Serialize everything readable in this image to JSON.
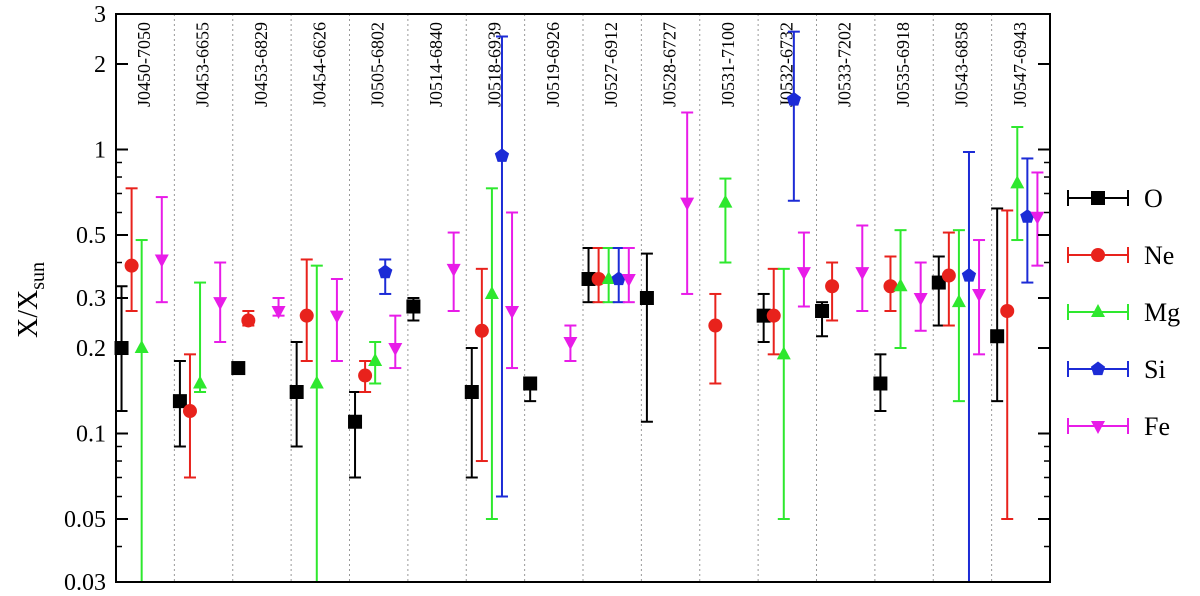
{
  "chart_data": {
    "type": "scatter",
    "title": "",
    "ylabel": "X/X",
    "ylabel_sub": "sun",
    "xlabel": "",
    "yscale": "log",
    "ylim": [
      0.03,
      3
    ],
    "yticks": [
      0.03,
      0.05,
      0.1,
      0.2,
      0.3,
      0.5,
      1,
      2,
      3
    ],
    "ytick_labels": [
      "0.03",
      "0.05",
      "0.1",
      "0.2",
      "0.3",
      "0.5",
      "1",
      "2",
      "3"
    ],
    "legend_position": "right",
    "categories": [
      "J0450-7050",
      "J0453-6655",
      "J0453-6829",
      "J0454-6626",
      "J0505-6802",
      "J0514-6840",
      "J0518-6939",
      "J0519-6926",
      "J0527-6912",
      "J0528-6727",
      "J0531-7100",
      "J0532-6732",
      "J0533-7202",
      "J0535-6918",
      "J0543-6858",
      "J0547-6943"
    ],
    "series": [
      {
        "name": "O",
        "color": "#000000",
        "marker": "square",
        "offset": 0,
        "points": [
          [
            0,
            0.2,
            0.12,
            0.33
          ],
          [
            1,
            0.13,
            0.09,
            0.18
          ],
          [
            2,
            0.17,
            null,
            null
          ],
          [
            3,
            0.14,
            0.09,
            0.21
          ],
          [
            4,
            0.11,
            0.07,
            0.14
          ],
          [
            5,
            0.28,
            0.25,
            0.3
          ],
          [
            6,
            0.14,
            0.07,
            0.2
          ],
          [
            7,
            0.15,
            0.13,
            null
          ],
          [
            8,
            0.35,
            0.29,
            0.45
          ],
          [
            9,
            0.3,
            0.11,
            0.43
          ],
          [
            11,
            0.26,
            0.21,
            0.31
          ],
          [
            12,
            0.27,
            0.22,
            0.29
          ],
          [
            13,
            0.15,
            0.12,
            0.19
          ],
          [
            14,
            0.34,
            0.24,
            0.42
          ],
          [
            15,
            0.22,
            0.13,
            0.62
          ]
        ]
      },
      {
        "name": "Ne",
        "color": "#e8221c",
        "marker": "circle",
        "offset": 1,
        "points": [
          [
            0,
            0.39,
            0.27,
            0.73
          ],
          [
            1,
            0.12,
            0.07,
            0.19
          ],
          [
            2,
            0.25,
            0.24,
            0.27
          ],
          [
            3,
            0.26,
            0.18,
            0.41
          ],
          [
            4,
            0.16,
            0.14,
            0.18
          ],
          [
            6,
            0.23,
            0.08,
            0.38
          ],
          [
            8,
            0.35,
            0.29,
            0.45
          ],
          [
            10,
            0.24,
            0.15,
            0.31
          ],
          [
            11,
            0.26,
            0.19,
            0.38
          ],
          [
            12,
            0.33,
            0.25,
            0.4
          ],
          [
            13,
            0.33,
            0.27,
            0.42
          ],
          [
            14,
            0.36,
            0.24,
            0.51
          ],
          [
            15,
            0.27,
            0.05,
            0.61
          ]
        ]
      },
      {
        "name": "Mg",
        "color": "#2ee82e",
        "marker": "triangle-up",
        "offset": 2,
        "points": [
          [
            0,
            0.2,
            0.03,
            0.48
          ],
          [
            1,
            0.15,
            0.14,
            0.34
          ],
          [
            3,
            0.15,
            0.03,
            0.39
          ],
          [
            4,
            0.18,
            0.15,
            0.21
          ],
          [
            6,
            0.31,
            0.05,
            0.73
          ],
          [
            8,
            0.35,
            0.29,
            0.45
          ],
          [
            10,
            0.65,
            0.4,
            0.79
          ],
          [
            11,
            0.19,
            0.05,
            0.38
          ],
          [
            13,
            0.33,
            0.2,
            0.52
          ],
          [
            14,
            0.29,
            0.13,
            0.52
          ],
          [
            15,
            0.76,
            0.48,
            1.2
          ]
        ]
      },
      {
        "name": "Si",
        "color": "#1c2bd6",
        "marker": "pentagon",
        "offset": 3,
        "points": [
          [
            4,
            0.37,
            0.31,
            0.41
          ],
          [
            6,
            0.95,
            0.06,
            2.5
          ],
          [
            8,
            0.35,
            0.29,
            0.45
          ],
          [
            11,
            1.5,
            0.66,
            2.6
          ],
          [
            14,
            0.36,
            0.03,
            0.98
          ],
          [
            15,
            0.58,
            0.34,
            0.93
          ]
        ]
      },
      {
        "name": "Fe",
        "color": "#e81ce8",
        "marker": "triangle-down",
        "offset": 4,
        "points": [
          [
            0,
            0.41,
            0.29,
            0.68
          ],
          [
            1,
            0.29,
            0.21,
            0.4
          ],
          [
            2,
            0.27,
            0.26,
            0.3
          ],
          [
            3,
            0.26,
            0.18,
            0.35
          ],
          [
            4,
            0.2,
            0.17,
            0.26
          ],
          [
            5,
            0.38,
            0.27,
            0.51
          ],
          [
            6,
            0.27,
            0.17,
            0.6
          ],
          [
            7,
            0.21,
            0.18,
            0.24
          ],
          [
            8,
            0.35,
            0.29,
            0.45
          ],
          [
            9,
            0.65,
            0.31,
            1.35
          ],
          [
            11,
            0.37,
            0.28,
            0.51
          ],
          [
            12,
            0.37,
            0.27,
            0.54
          ],
          [
            13,
            0.3,
            0.23,
            0.4
          ],
          [
            14,
            0.31,
            0.19,
            0.48
          ],
          [
            15,
            0.58,
            0.39,
            0.83
          ]
        ]
      }
    ]
  }
}
